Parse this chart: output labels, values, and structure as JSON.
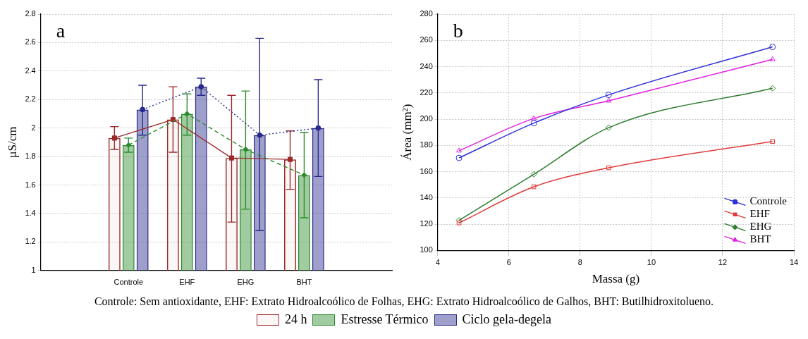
{
  "chart_data": [
    {
      "type": "bar",
      "title": "a",
      "ylabel": "µS/cm",
      "categories": [
        null,
        "Controle",
        "EHF",
        "EHG",
        "BHT",
        null
      ],
      "ylim": [
        1,
        2.8
      ],
      "yticks": [
        1,
        1.2,
        1.4,
        1.6,
        1.8,
        2,
        2.2,
        2.4,
        2.6,
        2.8
      ],
      "grid": "y",
      "legend": "bottom",
      "annotations": [
        "Controle: Sem antioxidante, EHF: Extrato Hidroalcoólico de Folhas, EHG: Extrato Hidroalcoólico de Galhos, BHT: Butilhidroxitolueno."
      ],
      "series": [
        {
          "name": "24 h",
          "color": "#9b2a2a",
          "values": [
            null,
            1.93,
            2.06,
            1.79,
            1.78,
            null
          ],
          "errors": [
            null,
            [
              1.85,
              2.01
            ],
            [
              1.83,
              2.29
            ],
            [
              1.34,
              2.23
            ],
            [
              1.57,
              1.98
            ],
            null
          ]
        },
        {
          "name": "Estresse Térmico",
          "color": "#2e8b2e",
          "values": [
            null,
            1.88,
            2.1,
            1.85,
            1.67,
            null
          ],
          "errors": [
            null,
            [
              1.83,
              1.93
            ],
            [
              1.95,
              2.24
            ],
            [
              1.43,
              2.26
            ],
            [
              1.37,
              1.97
            ],
            null
          ]
        },
        {
          "name": "Ciclo gela-degela",
          "color": "#2a2a8c",
          "values": [
            null,
            2.13,
            2.29,
            1.95,
            2,
            null
          ],
          "errors": [
            null,
            [
              1.95,
              2.3
            ],
            [
              2.23,
              2.35
            ],
            [
              1.28,
              2.63
            ],
            [
              1.66,
              2.34
            ],
            null
          ]
        },
        {
          "type": "line",
          "color": "#9b2a2a",
          "marker": "square",
          "line_style": "solid",
          "values": [
            null,
            1.93,
            2.06,
            1.79,
            1.78,
            null
          ]
        },
        {
          "type": "line",
          "color": "#2e8b2e",
          "marker": "diamond",
          "line_style": "dashed",
          "values": [
            null,
            1.88,
            2.1,
            1.85,
            1.67,
            null
          ]
        },
        {
          "type": "line",
          "color": "#2a2a8c",
          "marker": "circle",
          "line_style": "dotted",
          "values": [
            null,
            2.13,
            2.29,
            1.95,
            2,
            null
          ]
        }
      ]
    },
    {
      "type": "line",
      "title": "b",
      "xlabel": "Massa (g)",
      "ylabel": "Área (mm²)",
      "x": [
        4.6,
        6.7,
        8.8,
        13.4
      ],
      "xlim": [
        4,
        14
      ],
      "xticks": [
        4,
        6,
        8,
        10,
        12,
        14
      ],
      "ylim": [
        100,
        280
      ],
      "yticks": [
        100,
        120,
        140,
        160,
        180,
        200,
        220,
        240,
        260,
        280
      ],
      "grid": true,
      "legend": "bottom right",
      "series": [
        {
          "name": "Controle",
          "color": "#3030d8",
          "marker": "circle",
          "values": [
            170.5,
            197,
            218.5,
            255
          ]
        },
        {
          "name": "EHF",
          "color": "#e03a3a",
          "marker": "square",
          "values": [
            121,
            148.5,
            163,
            183
          ]
        },
        {
          "name": "EHG",
          "color": "#2e7d2e",
          "marker": "diamond",
          "values": [
            123,
            158,
            193.5,
            223.5
          ]
        },
        {
          "name": "BHT",
          "color": "#e020e0",
          "marker": "triangle",
          "values": [
            176,
            200.5,
            214,
            245.5
          ]
        }
      ]
    }
  ]
}
